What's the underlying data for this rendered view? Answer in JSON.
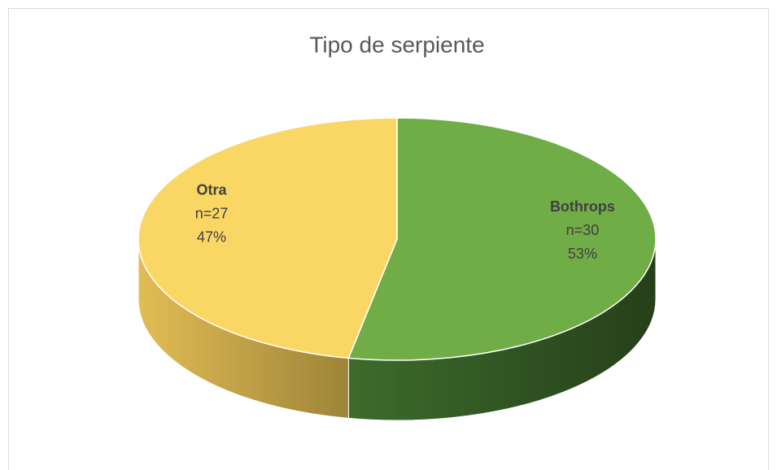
{
  "chart_data": {
    "type": "pie3d",
    "title": "Tipo de serpiente",
    "categories": [
      "Bothrops",
      "Otra"
    ],
    "values": [
      53,
      47
    ],
    "value_labels": [
      "53%",
      "47%"
    ],
    "counts": [
      30,
      27
    ],
    "count_labels": [
      "n=30",
      "n=27"
    ],
    "colors": [
      "#70ad47",
      "#fad765"
    ]
  }
}
